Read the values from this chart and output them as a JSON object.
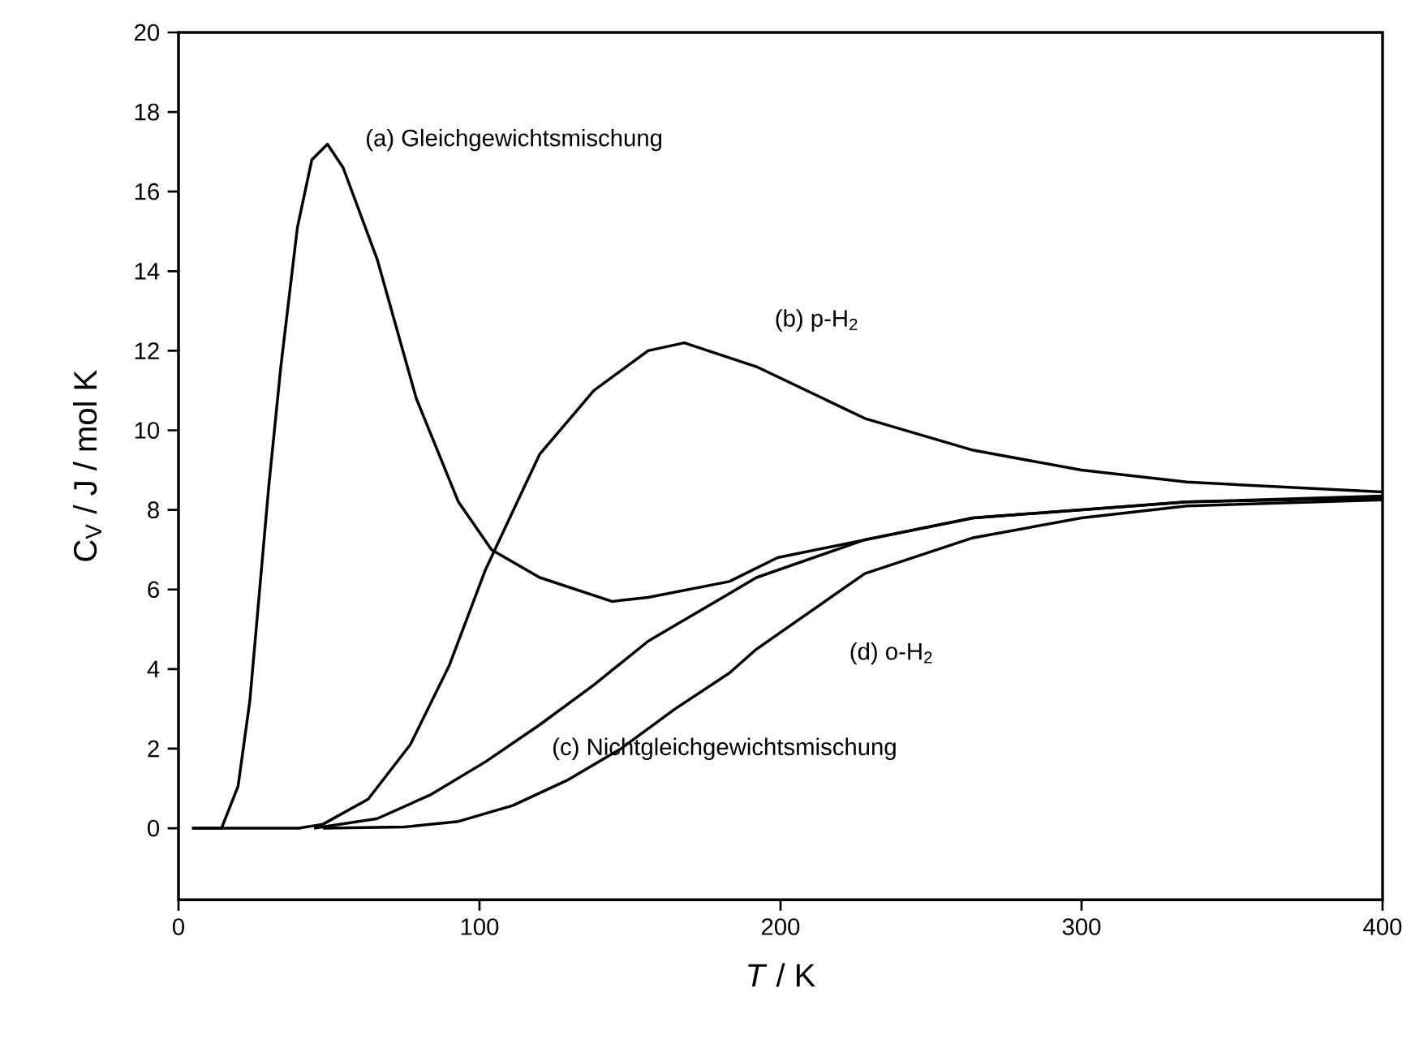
{
  "chart_data": {
    "type": "line",
    "xlabel": "*T* / K",
    "ylabel": "C$_{V}$ /  J / mol K",
    "xlim": [
      0,
      400
    ],
    "xticks": [
      0,
      100,
      200,
      300,
      400
    ],
    "ylim": [
      -1.8,
      20
    ],
    "yticks": [
      0,
      2,
      4,
      6,
      8,
      10,
      12,
      14,
      16,
      18,
      20
    ],
    "grid": false,
    "marker": "none",
    "line_style": "solid",
    "series": [
      {
        "color": "#000000",
        "x": [
          4.5,
          14.3,
          19.8,
          23.7,
          30,
          34,
          39.5,
          44.3,
          49.5,
          54.7,
          66,
          79,
          93,
          104,
          120,
          144,
          156,
          183,
          199,
          264,
          335,
          400
        ],
        "values": [
          0,
          0,
          1.06,
          3.2,
          8.6,
          11.6,
          15.1,
          16.8,
          17.19,
          16.6,
          14.3,
          10.8,
          8.2,
          7.0,
          6.3,
          5.7,
          5.8,
          6.2,
          6.8,
          7.8,
          8.2,
          8.35
        ]
      },
      {
        "color": "#000000",
        "x": [
          4.5,
          40,
          48,
          63,
          77,
          90,
          102,
          115,
          120,
          138,
          156,
          168,
          192,
          228,
          264,
          300,
          335,
          400
        ],
        "values": [
          0,
          0,
          0.1,
          0.73,
          2.1,
          4.1,
          6.5,
          8.6,
          9.4,
          11.0,
          12.0,
          12.2,
          11.6,
          10.3,
          9.5,
          9.0,
          8.7,
          8.45
        ]
      },
      {
        "color": "#000000",
        "x": [
          45,
          66,
          84,
          102,
          120,
          138,
          156,
          183,
          192,
          228,
          264,
          335,
          400
        ],
        "values": [
          0,
          0.24,
          0.85,
          1.67,
          2.6,
          3.6,
          4.7,
          5.9,
          6.3,
          7.25,
          7.8,
          8.2,
          8.3
        ]
      },
      {
        "color": "#000000",
        "x": [
          48,
          75,
          93,
          111,
          129,
          147,
          165,
          183,
          192,
          228,
          264,
          300,
          335,
          400
        ],
        "values": [
          0,
          0.03,
          0.17,
          0.57,
          1.2,
          2.0,
          3.0,
          3.9,
          4.5,
          6.4,
          7.3,
          7.8,
          8.1,
          8.25
        ]
      }
    ],
    "annotations": [
      "(a) Gleichgewichtsmischung",
      "(b) p-H$_{2}$",
      "(c) Nichtgleichgewichtsmischung",
      "(d) o-H$_{2}$"
    ]
  }
}
